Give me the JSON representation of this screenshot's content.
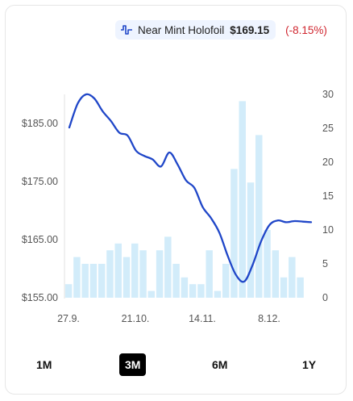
{
  "legend": {
    "series_name": "Near Mint Holofoil",
    "price": "$169.15",
    "change": "(-8.15%)",
    "icon": "line-chart-icon"
  },
  "ranges": {
    "items": [
      "1M",
      "3M",
      "6M",
      "1Y"
    ],
    "selected": "3M"
  },
  "colors": {
    "line": "#1f46c8",
    "bars": "#d2ecfa",
    "change_negative": "#d0262f",
    "active_button": "#000000"
  },
  "chart_data": {
    "type": "line",
    "title": "",
    "x_tick_labels": [
      "27.9.",
      "21.10.",
      "14.11.",
      "8.12."
    ],
    "y_left_ticks": [
      "$155.00",
      "$165.00",
      "$175.00",
      "$185.00"
    ],
    "y_left_range": [
      155,
      190
    ],
    "y_right_ticks": [
      "0",
      "5",
      "10",
      "15",
      "20",
      "25",
      "30"
    ],
    "y_right_range": [
      0,
      30
    ],
    "grid": false,
    "series": [
      {
        "name": "Near Mint Holofoil",
        "axis": "left",
        "kind": "line",
        "values": [
          184.3,
          188.4,
          190.0,
          189.3,
          187.1,
          185.4,
          183.4,
          182.9,
          180.3,
          179.4,
          178.8,
          177.6,
          180.0,
          177.9,
          175.2,
          173.9,
          170.6,
          168.7,
          166.2,
          162.2,
          158.9,
          157.8,
          160.7,
          164.7,
          167.5,
          168.3,
          168.0,
          168.2,
          168.1,
          168.0
        ]
      },
      {
        "name": "",
        "axis": "right",
        "kind": "bar",
        "values": [
          2,
          6,
          5,
          5,
          5,
          7,
          8,
          6,
          8,
          7,
          1,
          7,
          9,
          5,
          3,
          2,
          2,
          7,
          1,
          5,
          19,
          29,
          17,
          24,
          10,
          7,
          3,
          6,
          3,
          0
        ]
      }
    ]
  }
}
